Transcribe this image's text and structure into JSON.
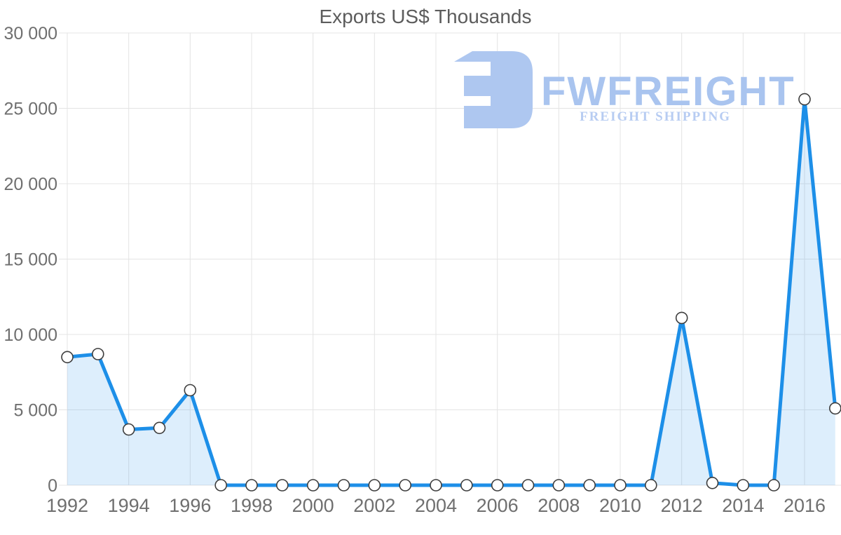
{
  "chart": {
    "title": "Exports US$ Thousands"
  },
  "watermark": {
    "brand": "FWFREIGHT",
    "tagline": "FREIGHT SHIPPING",
    "brand_color": "#a9c4ef",
    "tagline_color": "#b7ccf2",
    "icon_color": "#aec7f0"
  },
  "chart_data": {
    "type": "area",
    "title": "Exports US$ Thousands",
    "xlabel": "",
    "ylabel": "",
    "x": [
      1992,
      1993,
      1994,
      1995,
      1996,
      1997,
      1998,
      1999,
      2000,
      2001,
      2002,
      2003,
      2004,
      2005,
      2006,
      2007,
      2008,
      2009,
      2010,
      2011,
      2012,
      2013,
      2014,
      2015,
      2016,
      2017
    ],
    "values": [
      8500,
      8700,
      3700,
      3800,
      6300,
      0,
      0,
      0,
      0,
      0,
      0,
      0,
      0,
      0,
      0,
      0,
      0,
      0,
      0,
      0,
      11100,
      150,
      0,
      0,
      25600,
      5100
    ],
    "ylim": [
      0,
      30000
    ],
    "y_ticks": [
      0,
      5000,
      10000,
      15000,
      20000,
      25000,
      30000
    ],
    "y_tick_labels": [
      "0",
      "5 000",
      "10 000",
      "15 000",
      "20 000",
      "25 000",
      "30 000"
    ],
    "x_ticks": [
      1992,
      1994,
      1996,
      1998,
      2000,
      2002,
      2004,
      2006,
      2008,
      2010,
      2012,
      2014,
      2016
    ],
    "x_tick_labels": [
      "1992",
      "1994",
      "1996",
      "1998",
      "2000",
      "2002",
      "2004",
      "2006",
      "2008",
      "2010",
      "2012",
      "2014",
      "2016"
    ],
    "grid": true,
    "legend": false,
    "colors": {
      "line": "#1d8fe8",
      "fill": "rgba(29, 143, 232, 0.15)",
      "marker_fill": "#ffffff",
      "marker_stroke": "#3d3d3d",
      "grid": "#e4e4e4",
      "tick_label": "#6f6f6f",
      "title": "#5c5c5c"
    }
  }
}
